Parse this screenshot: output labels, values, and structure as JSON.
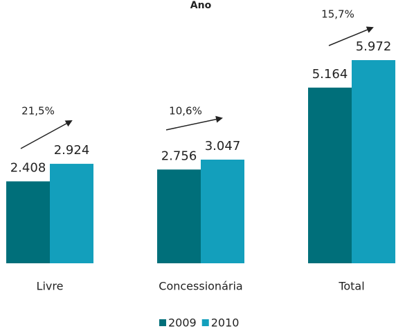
{
  "chart_data": {
    "type": "bar",
    "title": "Ano",
    "categories": [
      "Livre",
      "Concessionária",
      "Total"
    ],
    "series": [
      {
        "name": "2009",
        "color": "#006f7a",
        "values": [
          2408,
          2756,
          5164
        ],
        "value_labels": [
          "2.408",
          "2.756",
          "5.164"
        ]
      },
      {
        "name": "2010",
        "color": "#139fbc",
        "values": [
          2924,
          3047,
          5972
        ],
        "value_labels": [
          "2.924",
          "3.047",
          "5.972"
        ]
      }
    ],
    "annotations": [
      "21,5%",
      "10,6%",
      "15,7%"
    ]
  }
}
